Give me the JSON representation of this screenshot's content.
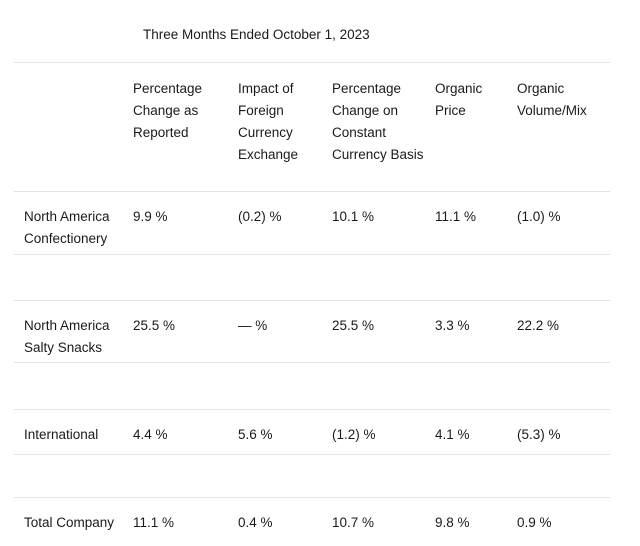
{
  "table": {
    "title": "Three Months Ended October 1, 2023",
    "columns": [
      "",
      "Percentage Change as Reported",
      "Impact of Foreign Currency Exchange",
      "Percentage Change on Constant Currency Basis",
      "Organic Price",
      "Organic Volume/Mix"
    ],
    "rows": [
      {
        "label": "North America Confectionery",
        "values": [
          "9.9 %",
          "(0.2) %",
          "10.1 %",
          "11.1 %",
          "(1.0) %"
        ]
      },
      {
        "label": "North America Salty Snacks",
        "values": [
          "25.5 %",
          "— %",
          "25.5 %",
          "3.3 %",
          "22.2 %"
        ]
      },
      {
        "label": "International",
        "values": [
          "4.4 %",
          "5.6 %",
          "(1.2) %",
          "4.1 %",
          "(5.3) %"
        ]
      },
      {
        "label": "Total Company",
        "values": [
          "11.1 %",
          "0.4 %",
          "10.7 %",
          "9.8 %",
          "0.9 %"
        ]
      }
    ],
    "colors": {
      "text": "#1a1a1a",
      "rule": "#e2e2e2",
      "background": "#ffffff"
    }
  }
}
